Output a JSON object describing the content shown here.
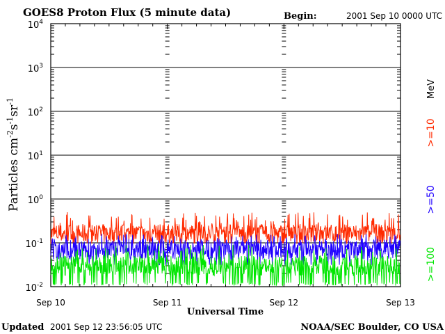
{
  "chart_data": {
    "type": "line",
    "title": "GOES8 Proton Flux (5 minute data)",
    "begin_label": "Begin:",
    "begin_value": "2001 Sep 10 0000 UTC",
    "ylabel": {
      "base": "Particles cm",
      "exp1": "-2",
      "mid1": "s",
      "exp2": "-1",
      "mid2": "sr",
      "exp3": "-1"
    },
    "xlabel": "Universal Time",
    "y_scale": "log",
    "ylim": [
      0.01,
      10000
    ],
    "y_ticks": [
      {
        "value": 0.01,
        "base": "10",
        "exp": "-2"
      },
      {
        "value": 0.1,
        "base": "10",
        "exp": "-1"
      },
      {
        "value": 1,
        "base": "10",
        "exp": "0"
      },
      {
        "value": 10,
        "base": "10",
        "exp": "1"
      },
      {
        "value": 100,
        "base": "10",
        "exp": "2"
      },
      {
        "value": 1000,
        "base": "10",
        "exp": "3"
      },
      {
        "value": 10000,
        "base": "10",
        "exp": "4"
      }
    ],
    "x_ticks": [
      "Sep 10",
      "Sep 11",
      "Sep 12",
      "Sep 13"
    ],
    "x_range_days": [
      0,
      3
    ],
    "grid": true,
    "units_label": "MeV",
    "legend_placement": "right",
    "series": [
      {
        "name": ">=10",
        "color": "#ff2a00",
        "typical": 0.16,
        "spike_max": 0.5
      },
      {
        "name": ">=50",
        "color": "#1f00ff",
        "typical": 0.07,
        "spike_max": 0.16
      },
      {
        "name": ">=100",
        "color": "#00e600",
        "typical": 0.03,
        "spike_max": 0.09
      }
    ]
  },
  "footer": {
    "updated_label": "Updated",
    "updated_value": "2001 Sep 12 23:56:05 UTC",
    "credit": "NOAA/SEC Boulder, CO USA"
  }
}
